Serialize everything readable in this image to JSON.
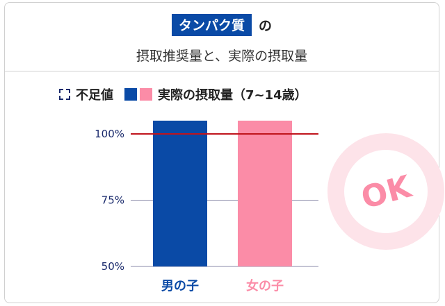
{
  "header": {
    "badge": "タンパク質",
    "particle": "の",
    "subtitle": "摂取推奨量と、実際の摂取量"
  },
  "legend": {
    "deficit": "不足値",
    "actual": "実際の摂取量（7~14歳）"
  },
  "stamp": {
    "text": "OK"
  },
  "colors": {
    "boy": "#0a4aa6",
    "girl": "#fb8ca7",
    "reference_line": "#c0141c",
    "axis_text": "#1a2a6c"
  },
  "chart_data": {
    "type": "bar",
    "categories": [
      "男の子",
      "女の子"
    ],
    "values": [
      105,
      105
    ],
    "ylim": [
      50,
      100
    ],
    "ytick_labels": [
      "100%",
      "75%",
      "50%"
    ],
    "reference_line": 100,
    "xlabel": "",
    "ylabel": ""
  }
}
